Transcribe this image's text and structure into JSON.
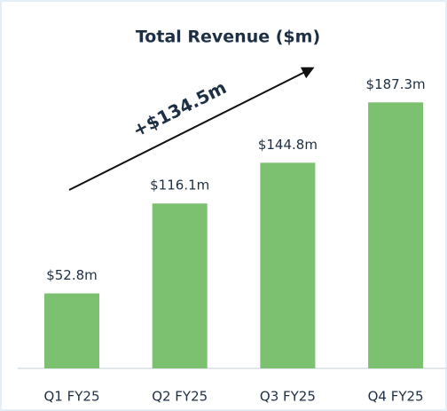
{
  "chart_data": {
    "type": "bar",
    "title": "Total Revenue ($m)",
    "categories": [
      "Q1 FY25",
      "Q2 FY25",
      "Q3 FY25",
      "Q4 FY25"
    ],
    "values": [
      52.8,
      116.1,
      144.8,
      187.3
    ],
    "value_labels": [
      "$52.8m",
      "$116.1m",
      "$144.8m",
      "$187.3m"
    ],
    "color": "#7cc16f",
    "annotations": [
      "+$134.5m"
    ]
  }
}
